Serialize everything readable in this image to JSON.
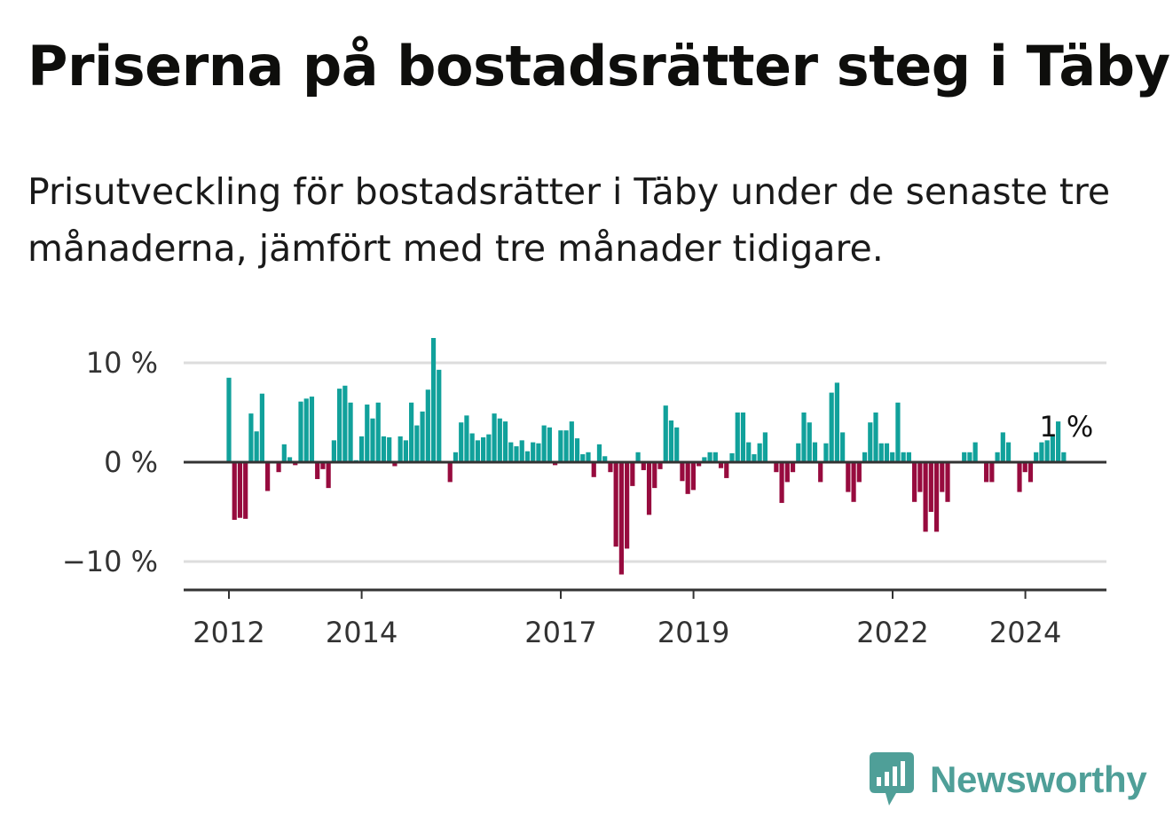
{
  "title": "Priserna på bostadsrätter steg i Täby",
  "subtitle": "Prisutveckling för bostadsrätter i Täby under de senaste tre månaderna, jämfört med tre månader tidigare.",
  "brand": {
    "name": "Newsworthy",
    "icon": "newsworthy-logo-icon"
  },
  "colors": {
    "positive": "#11a19b",
    "negative": "#970b3e",
    "grid": "#dddddd",
    "axis": "#333333",
    "brand": "#4f9f98"
  },
  "chart_data": {
    "type": "bar",
    "title": "Priserna på bostadsrätter steg i Täby",
    "xlabel": "",
    "ylabel": "",
    "unit": "%",
    "ylim": [
      -13,
      13
    ],
    "x_start": 2012.0,
    "x_step": 0.0833,
    "y_ticks": [
      {
        "value": 10,
        "label": "10 %"
      },
      {
        "value": 0,
        "label": "0 %"
      },
      {
        "value": -10,
        "label": "−10 %"
      }
    ],
    "x_ticks": [
      {
        "value": 2012,
        "label": "2012"
      },
      {
        "value": 2014,
        "label": "2014"
      },
      {
        "value": 2017,
        "label": "2017"
      },
      {
        "value": 2019,
        "label": "2019"
      },
      {
        "value": 2022,
        "label": "2022"
      },
      {
        "value": 2024,
        "label": "2024"
      }
    ],
    "last_value_label": "1 %",
    "values": [
      8.5,
      -5.8,
      -5.6,
      -5.7,
      4.9,
      3.1,
      6.9,
      -2.9,
      0,
      -1.0,
      1.8,
      0.5,
      -0.3,
      6.1,
      6.4,
      6.6,
      -1.7,
      -0.7,
      -2.6,
      2.2,
      7.4,
      7.7,
      6.0,
      0.2,
      2.6,
      5.8,
      4.4,
      6.0,
      2.6,
      2.5,
      -0.4,
      2.6,
      2.2,
      6.0,
      3.7,
      5.1,
      7.3,
      12.5,
      9.3,
      0,
      -2.0,
      1.0,
      4.0,
      4.7,
      2.9,
      2.2,
      2.5,
      2.8,
      4.9,
      4.4,
      4.1,
      2.0,
      1.6,
      2.2,
      1.1,
      2.0,
      1.9,
      3.7,
      3.5,
      -0.3,
      3.2,
      3.2,
      4.1,
      2.4,
      0.8,
      1.0,
      -1.5,
      1.8,
      0.6,
      -1.0,
      -8.5,
      -11.3,
      -8.7,
      -2.4,
      1.0,
      -0.8,
      -5.3,
      -2.6,
      -0.7,
      5.7,
      4.2,
      3.5,
      -1.9,
      -3.2,
      -2.8,
      -0.4,
      0.5,
      1.0,
      1.0,
      -0.6,
      -1.6,
      0.9,
      5.0,
      5.0,
      2.0,
      0.8,
      1.9,
      3.0,
      0,
      -1.0,
      -4.1,
      -2.0,
      -1.0,
      1.9,
      5.0,
      4.0,
      2.0,
      -2.0,
      1.9,
      7.0,
      8.0,
      3.0,
      -3.0,
      -4.0,
      -2.0,
      1.0,
      4.0,
      5.0,
      1.9,
      1.9,
      1.0,
      6.0,
      1.0,
      1.0,
      -4.0,
      -3.0,
      -7.0,
      -5.0,
      -7.0,
      -3.0,
      -4.0,
      0,
      0,
      1.0,
      1.0,
      2.0,
      0,
      -2.0,
      -2.0,
      1.0,
      3.0,
      2.0,
      0,
      -3.0,
      -1.0,
      -2.0,
      1.0,
      2.0,
      2.2,
      2.8,
      4.1,
      1.0
    ]
  }
}
